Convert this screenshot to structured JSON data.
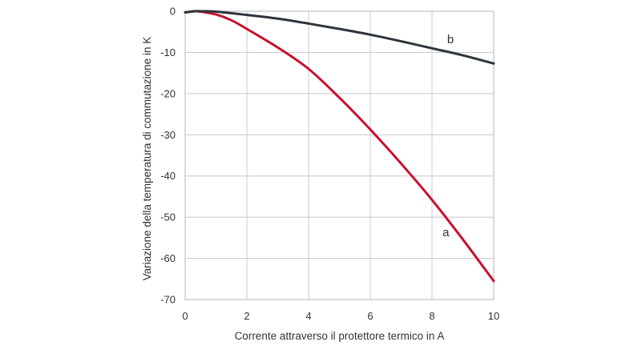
{
  "chart_data": {
    "type": "line",
    "title": "",
    "xlabel": "Corrente attraverso il protettore termico in A",
    "ylabel": "Variazione della temperatura di commutazione in K",
    "xlim": [
      0,
      10
    ],
    "ylim": [
      -70,
      0
    ],
    "xticks": [
      0,
      2,
      4,
      6,
      8,
      10
    ],
    "yticks": [
      0,
      -10,
      -20,
      -30,
      -40,
      -50,
      -60,
      -70
    ],
    "xtick_labels": [
      "0",
      "2",
      "4",
      "6",
      "8",
      "10"
    ],
    "ytick_labels": [
      "0",
      "-10",
      "-20",
      "-30",
      "-40",
      "-50",
      "-60",
      "-70"
    ],
    "grid": true,
    "legend": "none",
    "series": [
      {
        "name": "a",
        "color": "#c8102e",
        "x": [
          0,
          0.3,
          0.5,
          1,
          1.5,
          2,
          3,
          4,
          5,
          6,
          7,
          8,
          9,
          10
        ],
        "y": [
          -0.3,
          0,
          -0.1,
          -0.8,
          -2.2,
          -4.3,
          -8.8,
          -14,
          -21,
          -28.7,
          -37,
          -45.8,
          -55.4,
          -65.5
        ]
      },
      {
        "name": "b",
        "color": "#2f353d",
        "x": [
          0,
          0.3,
          0.5,
          1,
          2,
          3,
          4,
          5,
          6,
          7,
          8,
          9,
          10
        ],
        "y": [
          -0.3,
          0,
          0,
          -0.1,
          -0.9,
          -1.8,
          -3,
          -4.3,
          -5.7,
          -7.3,
          -9,
          -10.7,
          -12.7
        ]
      }
    ]
  }
}
